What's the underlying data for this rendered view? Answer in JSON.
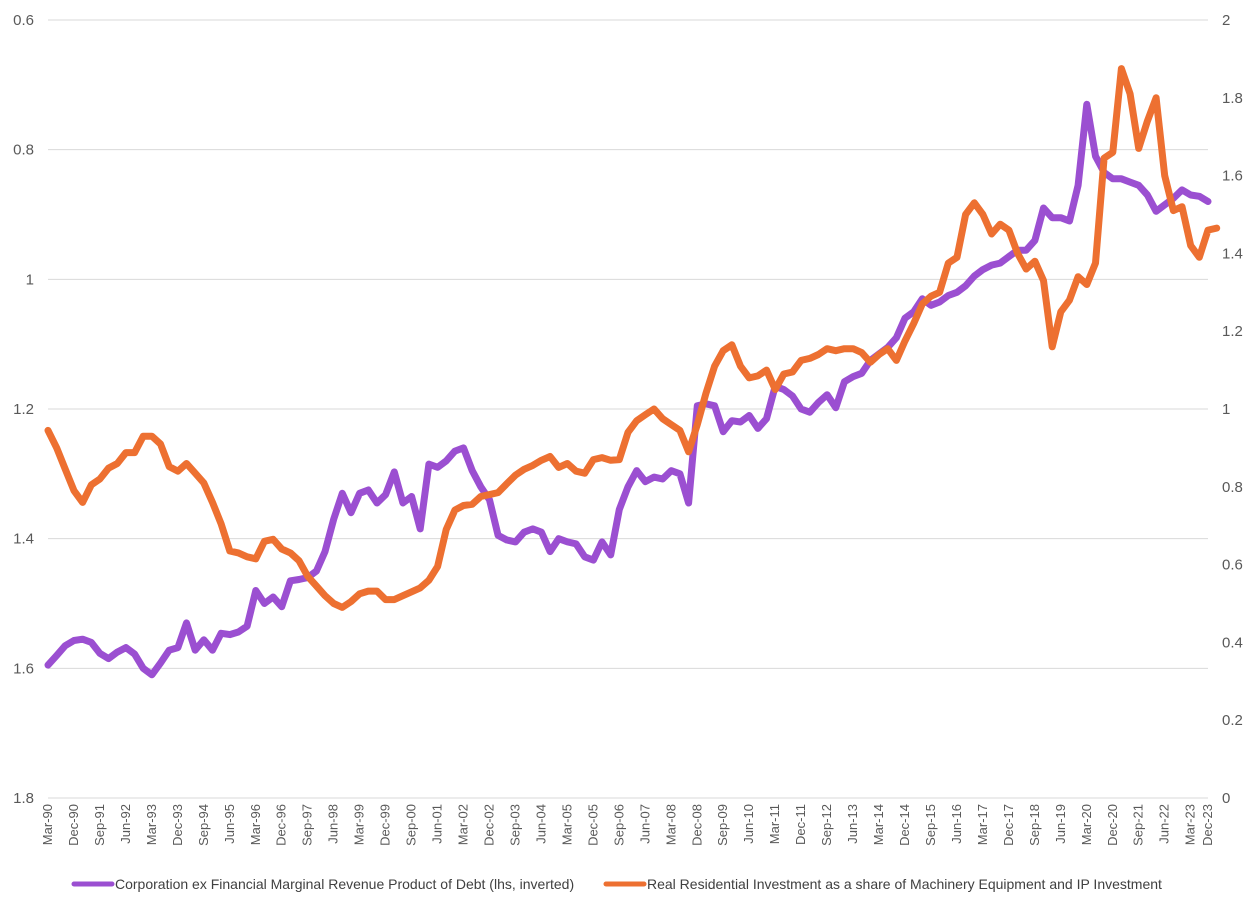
{
  "chart_data": {
    "type": "line",
    "title": "",
    "xlabel": "",
    "ylabel": "",
    "x_tick_labels": [
      "Mar-90",
      "Dec-90",
      "Sep-91",
      "Jun-92",
      "Mar-93",
      "Dec-93",
      "Sep-94",
      "Jun-95",
      "Mar-96",
      "Dec-96",
      "Sep-97",
      "Jun-98",
      "Mar-99",
      "Dec-99",
      "Sep-00",
      "Jun-01",
      "Mar-02",
      "Dec-02",
      "Sep-03",
      "Jun-04",
      "Mar-05",
      "Dec-05",
      "Sep-06",
      "Jun-07",
      "Mar-08",
      "Dec-08",
      "Sep-09",
      "Jun-10",
      "Mar-11",
      "Dec-11",
      "Sep-12",
      "Jun-13",
      "Mar-14",
      "Dec-14",
      "Sep-15",
      "Jun-16",
      "Mar-17",
      "Dec-17",
      "Sep-18",
      "Jun-19",
      "Mar-20",
      "Dec-20",
      "Sep-21",
      "Jun-22",
      "Mar-23",
      "Dec-23"
    ],
    "left_axis": {
      "min": 0.6,
      "max": 1.8,
      "inverted": true,
      "ticks": [
        "0.6",
        "0.8",
        "1",
        "1.2",
        "1.4",
        "1.6",
        "1.8"
      ]
    },
    "right_axis": {
      "min": 0,
      "max": 2,
      "inverted": false,
      "ticks": [
        "0",
        "0.2",
        "0.4",
        "0.6",
        "0.8",
        "1",
        "1.2",
        "1.4",
        "1.6",
        "1.8",
        "2"
      ]
    },
    "grid": true,
    "legend_position": "bottom",
    "quarterly_start": "Mar-90",
    "series": [
      {
        "name": "Corporation ex Financial Marginal Revenue Product of Debt (lhs, inverted)",
        "axis": "left",
        "color": "#9b4fd1",
        "values": [
          1.595,
          1.58,
          1.565,
          1.557,
          1.555,
          1.56,
          1.577,
          1.585,
          1.575,
          1.568,
          1.578,
          1.6,
          1.61,
          1.592,
          1.572,
          1.568,
          1.53,
          1.572,
          1.556,
          1.572,
          1.546,
          1.548,
          1.544,
          1.535,
          1.48,
          1.5,
          1.49,
          1.505,
          1.465,
          1.463,
          1.46,
          1.45,
          1.42,
          1.37,
          1.33,
          1.36,
          1.33,
          1.325,
          1.345,
          1.332,
          1.297,
          1.345,
          1.335,
          1.385,
          1.285,
          1.29,
          1.28,
          1.265,
          1.26,
          1.295,
          1.32,
          1.34,
          1.395,
          1.402,
          1.405,
          1.39,
          1.385,
          1.39,
          1.42,
          1.4,
          1.405,
          1.408,
          1.428,
          1.433,
          1.405,
          1.425,
          1.355,
          1.32,
          1.295,
          1.312,
          1.305,
          1.308,
          1.295,
          1.3,
          1.345,
          1.195,
          1.192,
          1.195,
          1.235,
          1.218,
          1.22,
          1.21,
          1.23,
          1.215,
          1.165,
          1.17,
          1.18,
          1.2,
          1.205,
          1.19,
          1.178,
          1.198,
          1.158,
          1.15,
          1.145,
          1.125,
          1.115,
          1.105,
          1.09,
          1.06,
          1.05,
          1.03,
          1.04,
          1.035,
          1.025,
          1.02,
          1.01,
          0.995,
          0.985,
          0.978,
          0.975,
          0.965,
          0.955,
          0.955,
          0.94,
          0.89,
          0.905,
          0.905,
          0.91,
          0.855,
          0.73,
          0.81,
          0.835,
          0.845,
          0.845,
          0.85,
          0.855,
          0.87,
          0.895,
          0.885,
          0.875,
          0.862,
          0.87,
          0.872,
          0.88
        ]
      },
      {
        "name": "Real Residential Investment as a share of Machinery Equipment and IP Investment",
        "axis": "right",
        "color": "#ed7031",
        "values": [
          0.945,
          0.9,
          0.845,
          0.79,
          0.76,
          0.805,
          0.82,
          0.848,
          0.86,
          0.888,
          0.888,
          0.93,
          0.93,
          0.91,
          0.852,
          0.84,
          0.86,
          0.835,
          0.81,
          0.76,
          0.705,
          0.635,
          0.63,
          0.62,
          0.615,
          0.66,
          0.665,
          0.64,
          0.63,
          0.61,
          0.57,
          0.545,
          0.52,
          0.5,
          0.49,
          0.505,
          0.525,
          0.532,
          0.532,
          0.51,
          0.51,
          0.52,
          0.53,
          0.54,
          0.56,
          0.595,
          0.69,
          0.74,
          0.752,
          0.755,
          0.775,
          0.78,
          0.785,
          0.808,
          0.83,
          0.845,
          0.855,
          0.868,
          0.878,
          0.85,
          0.86,
          0.84,
          0.835,
          0.87,
          0.875,
          0.868,
          0.87,
          0.94,
          0.97,
          0.985,
          1.0,
          0.975,
          0.96,
          0.945,
          0.89,
          0.96,
          1.04,
          1.11,
          1.15,
          1.165,
          1.11,
          1.08,
          1.085,
          1.1,
          1.05,
          1.09,
          1.095,
          1.125,
          1.13,
          1.14,
          1.155,
          1.15,
          1.155,
          1.155,
          1.145,
          1.12,
          1.14,
          1.155,
          1.125,
          1.175,
          1.22,
          1.27,
          1.29,
          1.3,
          1.375,
          1.39,
          1.5,
          1.53,
          1.5,
          1.45,
          1.475,
          1.46,
          1.4,
          1.36,
          1.38,
          1.33,
          1.16,
          1.25,
          1.28,
          1.34,
          1.32,
          1.375,
          1.645,
          1.66,
          1.875,
          1.81,
          1.67,
          1.74,
          1.8,
          1.6,
          1.51,
          1.52,
          1.42,
          1.39,
          1.46,
          1.465
        ]
      }
    ]
  }
}
